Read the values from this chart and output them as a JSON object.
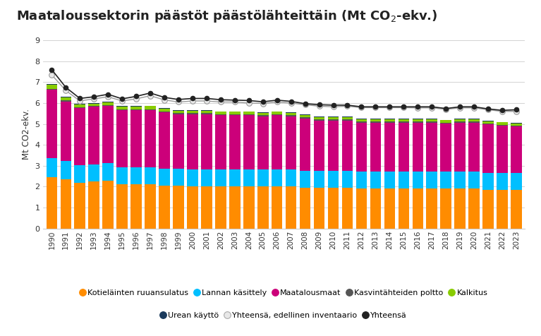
{
  "years": [
    1990,
    1991,
    1992,
    1993,
    1994,
    1995,
    1996,
    1997,
    1998,
    1999,
    2000,
    2001,
    2002,
    2003,
    2004,
    2005,
    2006,
    2007,
    2008,
    2009,
    2010,
    2011,
    2012,
    2013,
    2014,
    2015,
    2016,
    2017,
    2018,
    2019,
    2020,
    2021,
    2022,
    2023
  ],
  "kotielainten_ruuansulatus": [
    2.45,
    2.35,
    2.2,
    2.25,
    2.3,
    2.1,
    2.1,
    2.1,
    2.05,
    2.05,
    2.0,
    2.0,
    2.0,
    2.0,
    2.0,
    2.0,
    2.0,
    2.0,
    1.95,
    1.95,
    1.95,
    1.95,
    1.9,
    1.9,
    1.9,
    1.9,
    1.9,
    1.9,
    1.9,
    1.9,
    1.9,
    1.85,
    1.85,
    1.85
  ],
  "lannan_kasittely": [
    0.9,
    0.88,
    0.82,
    0.82,
    0.82,
    0.82,
    0.82,
    0.82,
    0.82,
    0.82,
    0.82,
    0.82,
    0.82,
    0.82,
    0.82,
    0.82,
    0.82,
    0.82,
    0.82,
    0.82,
    0.82,
    0.82,
    0.82,
    0.82,
    0.82,
    0.82,
    0.82,
    0.82,
    0.82,
    0.82,
    0.82,
    0.82,
    0.82,
    0.82
  ],
  "maatalousmaat": [
    3.3,
    2.85,
    2.75,
    2.75,
    2.75,
    2.75,
    2.75,
    2.75,
    2.7,
    2.6,
    2.65,
    2.65,
    2.6,
    2.6,
    2.6,
    2.55,
    2.6,
    2.55,
    2.5,
    2.4,
    2.4,
    2.4,
    2.35,
    2.35,
    2.35,
    2.35,
    2.35,
    2.35,
    2.3,
    2.35,
    2.35,
    2.3,
    2.25,
    2.2
  ],
  "kasvintahteiden_poltto": [
    0.04,
    0.04,
    0.04,
    0.04,
    0.04,
    0.04,
    0.04,
    0.04,
    0.04,
    0.04,
    0.04,
    0.04,
    0.04,
    0.04,
    0.04,
    0.04,
    0.04,
    0.04,
    0.04,
    0.04,
    0.04,
    0.04,
    0.04,
    0.04,
    0.04,
    0.04,
    0.04,
    0.04,
    0.04,
    0.04,
    0.04,
    0.04,
    0.04,
    0.04
  ],
  "kalkitus": [
    0.2,
    0.15,
    0.12,
    0.12,
    0.12,
    0.12,
    0.12,
    0.15,
    0.12,
    0.12,
    0.12,
    0.12,
    0.12,
    0.12,
    0.12,
    0.12,
    0.12,
    0.12,
    0.12,
    0.12,
    0.12,
    0.12,
    0.12,
    0.12,
    0.12,
    0.12,
    0.12,
    0.12,
    0.12,
    0.12,
    0.12,
    0.12,
    0.12,
    0.12
  ],
  "urean_kaytto": [
    0.02,
    0.02,
    0.02,
    0.02,
    0.02,
    0.02,
    0.02,
    0.02,
    0.02,
    0.02,
    0.02,
    0.02,
    0.02,
    0.02,
    0.02,
    0.02,
    0.02,
    0.02,
    0.02,
    0.02,
    0.02,
    0.02,
    0.02,
    0.02,
    0.02,
    0.02,
    0.02,
    0.02,
    0.02,
    0.02,
    0.02,
    0.02,
    0.02,
    0.02
  ],
  "yhteensa_edellinen": [
    7.35,
    6.6,
    6.1,
    6.2,
    6.3,
    6.1,
    6.2,
    6.35,
    6.15,
    6.05,
    6.1,
    6.1,
    6.05,
    6.05,
    6.0,
    5.98,
    6.05,
    6.0,
    5.92,
    5.85,
    5.82,
    5.85,
    5.78,
    5.78,
    5.78,
    5.78,
    5.77,
    5.77,
    5.7,
    5.77,
    5.77,
    5.68,
    5.6,
    5.6
  ],
  "yhteensa": [
    7.6,
    6.75,
    6.22,
    6.3,
    6.42,
    6.2,
    6.32,
    6.48,
    6.27,
    6.17,
    6.22,
    6.22,
    6.16,
    6.14,
    6.12,
    6.06,
    6.14,
    6.08,
    5.97,
    5.92,
    5.9,
    5.9,
    5.82,
    5.82,
    5.82,
    5.82,
    5.82,
    5.82,
    5.74,
    5.82,
    5.82,
    5.72,
    5.65,
    5.68
  ],
  "colors": {
    "kotielainten_ruuansulatus": "#FF8C00",
    "lannan_kasittely": "#00BFFF",
    "maatalousmaat": "#CC007A",
    "kasvintahteiden_poltto": "#555555",
    "kalkitus": "#88CC00",
    "urean_kaytto": "#1A3A5C"
  },
  "title_part1": "Maataloussektorin päästöt päästölähteittäin (Mt CO",
  "title_sub": "2",
  "title_part2": "-ekv.)",
  "ylabel": "Mt CO2-ekv.",
  "ylim": [
    0,
    9
  ],
  "yticks": [
    0,
    1,
    2,
    3,
    4,
    5,
    6,
    7,
    8,
    9
  ],
  "legend_labels": [
    "Kotieläinten ruuansulatus",
    "Lannan käsittely",
    "Maatalousmaat",
    "Kasvintähteiden poltto",
    "Kalkitus",
    "Urean käyttö",
    "Yhteensä, edellinen inventaario",
    "Yhteensä"
  ],
  "background_color": "#ffffff",
  "legend_dot_colors": [
    "#FF8C00",
    "#00BFFF",
    "#CC007A",
    "#555555",
    "#88CC00",
    "#1A3A5C",
    "#aaaaaa",
    "#111111"
  ]
}
